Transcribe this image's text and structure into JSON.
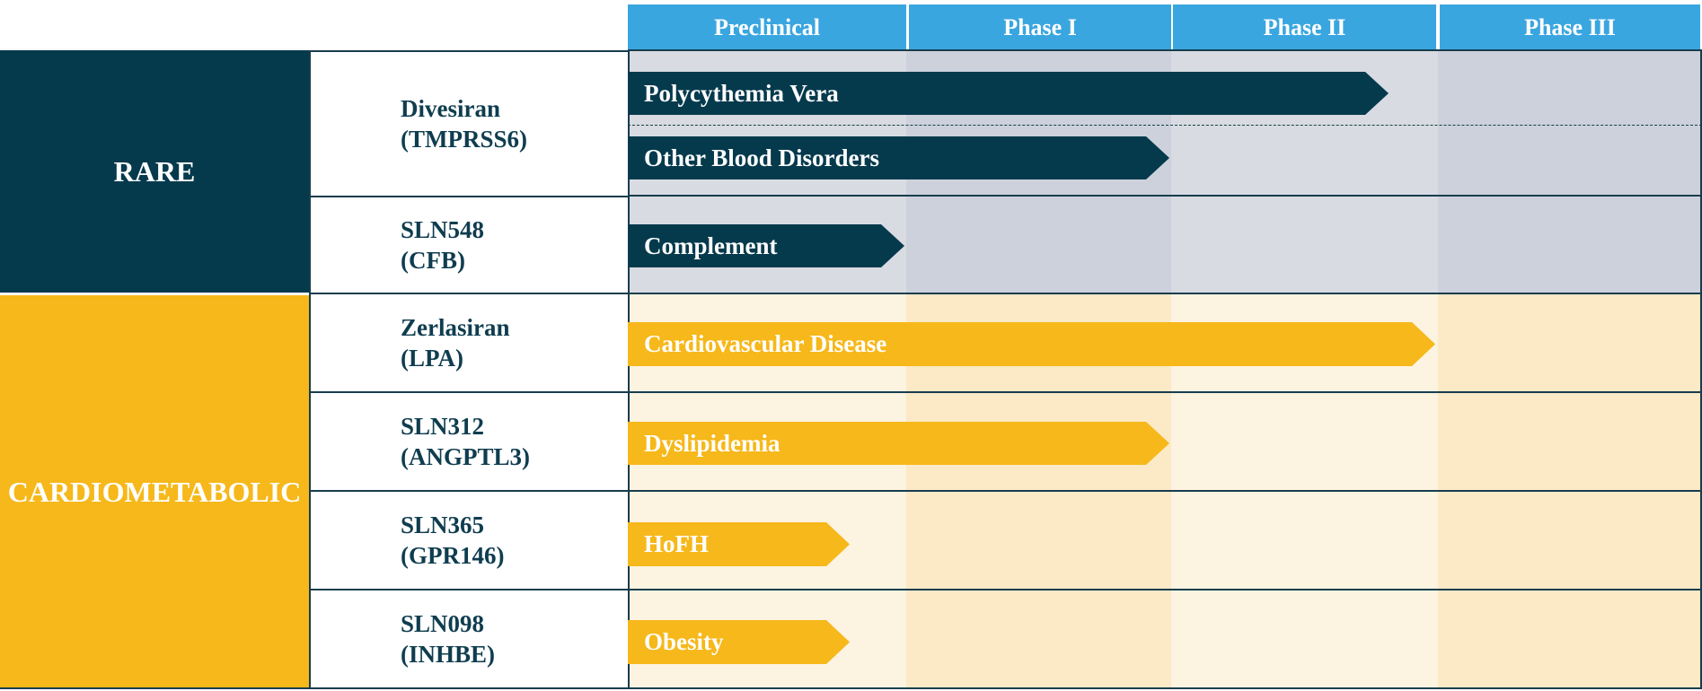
{
  "header": {
    "phases": [
      "Preclinical",
      "Phase I",
      "Phase II",
      "Phase III"
    ]
  },
  "groups": [
    {
      "label": "RARE",
      "programs": [
        {
          "drug": "Divesiran",
          "target": "(TMPRSS6)",
          "indications": [
            "Polycythemia Vera",
            "Other Blood Disorders"
          ]
        },
        {
          "drug": "SLN548",
          "target": "(CFB)",
          "indications": [
            "Complement"
          ]
        }
      ]
    },
    {
      "label": "CARDIOMETABOLIC",
      "programs": [
        {
          "drug": "Zerlasiran",
          "target": "(LPA)",
          "indications": [
            "Cardiovascular Disease"
          ]
        },
        {
          "drug": "SLN312",
          "target": "(ANGPTL3)",
          "indications": [
            "Dyslipidemia"
          ]
        },
        {
          "drug": "SLN365",
          "target": "(GPR146)",
          "indications": [
            "HoFH"
          ]
        },
        {
          "drug": "SLN098",
          "target": "(INHBE)",
          "indications": [
            "Obesity"
          ]
        }
      ]
    }
  ]
}
